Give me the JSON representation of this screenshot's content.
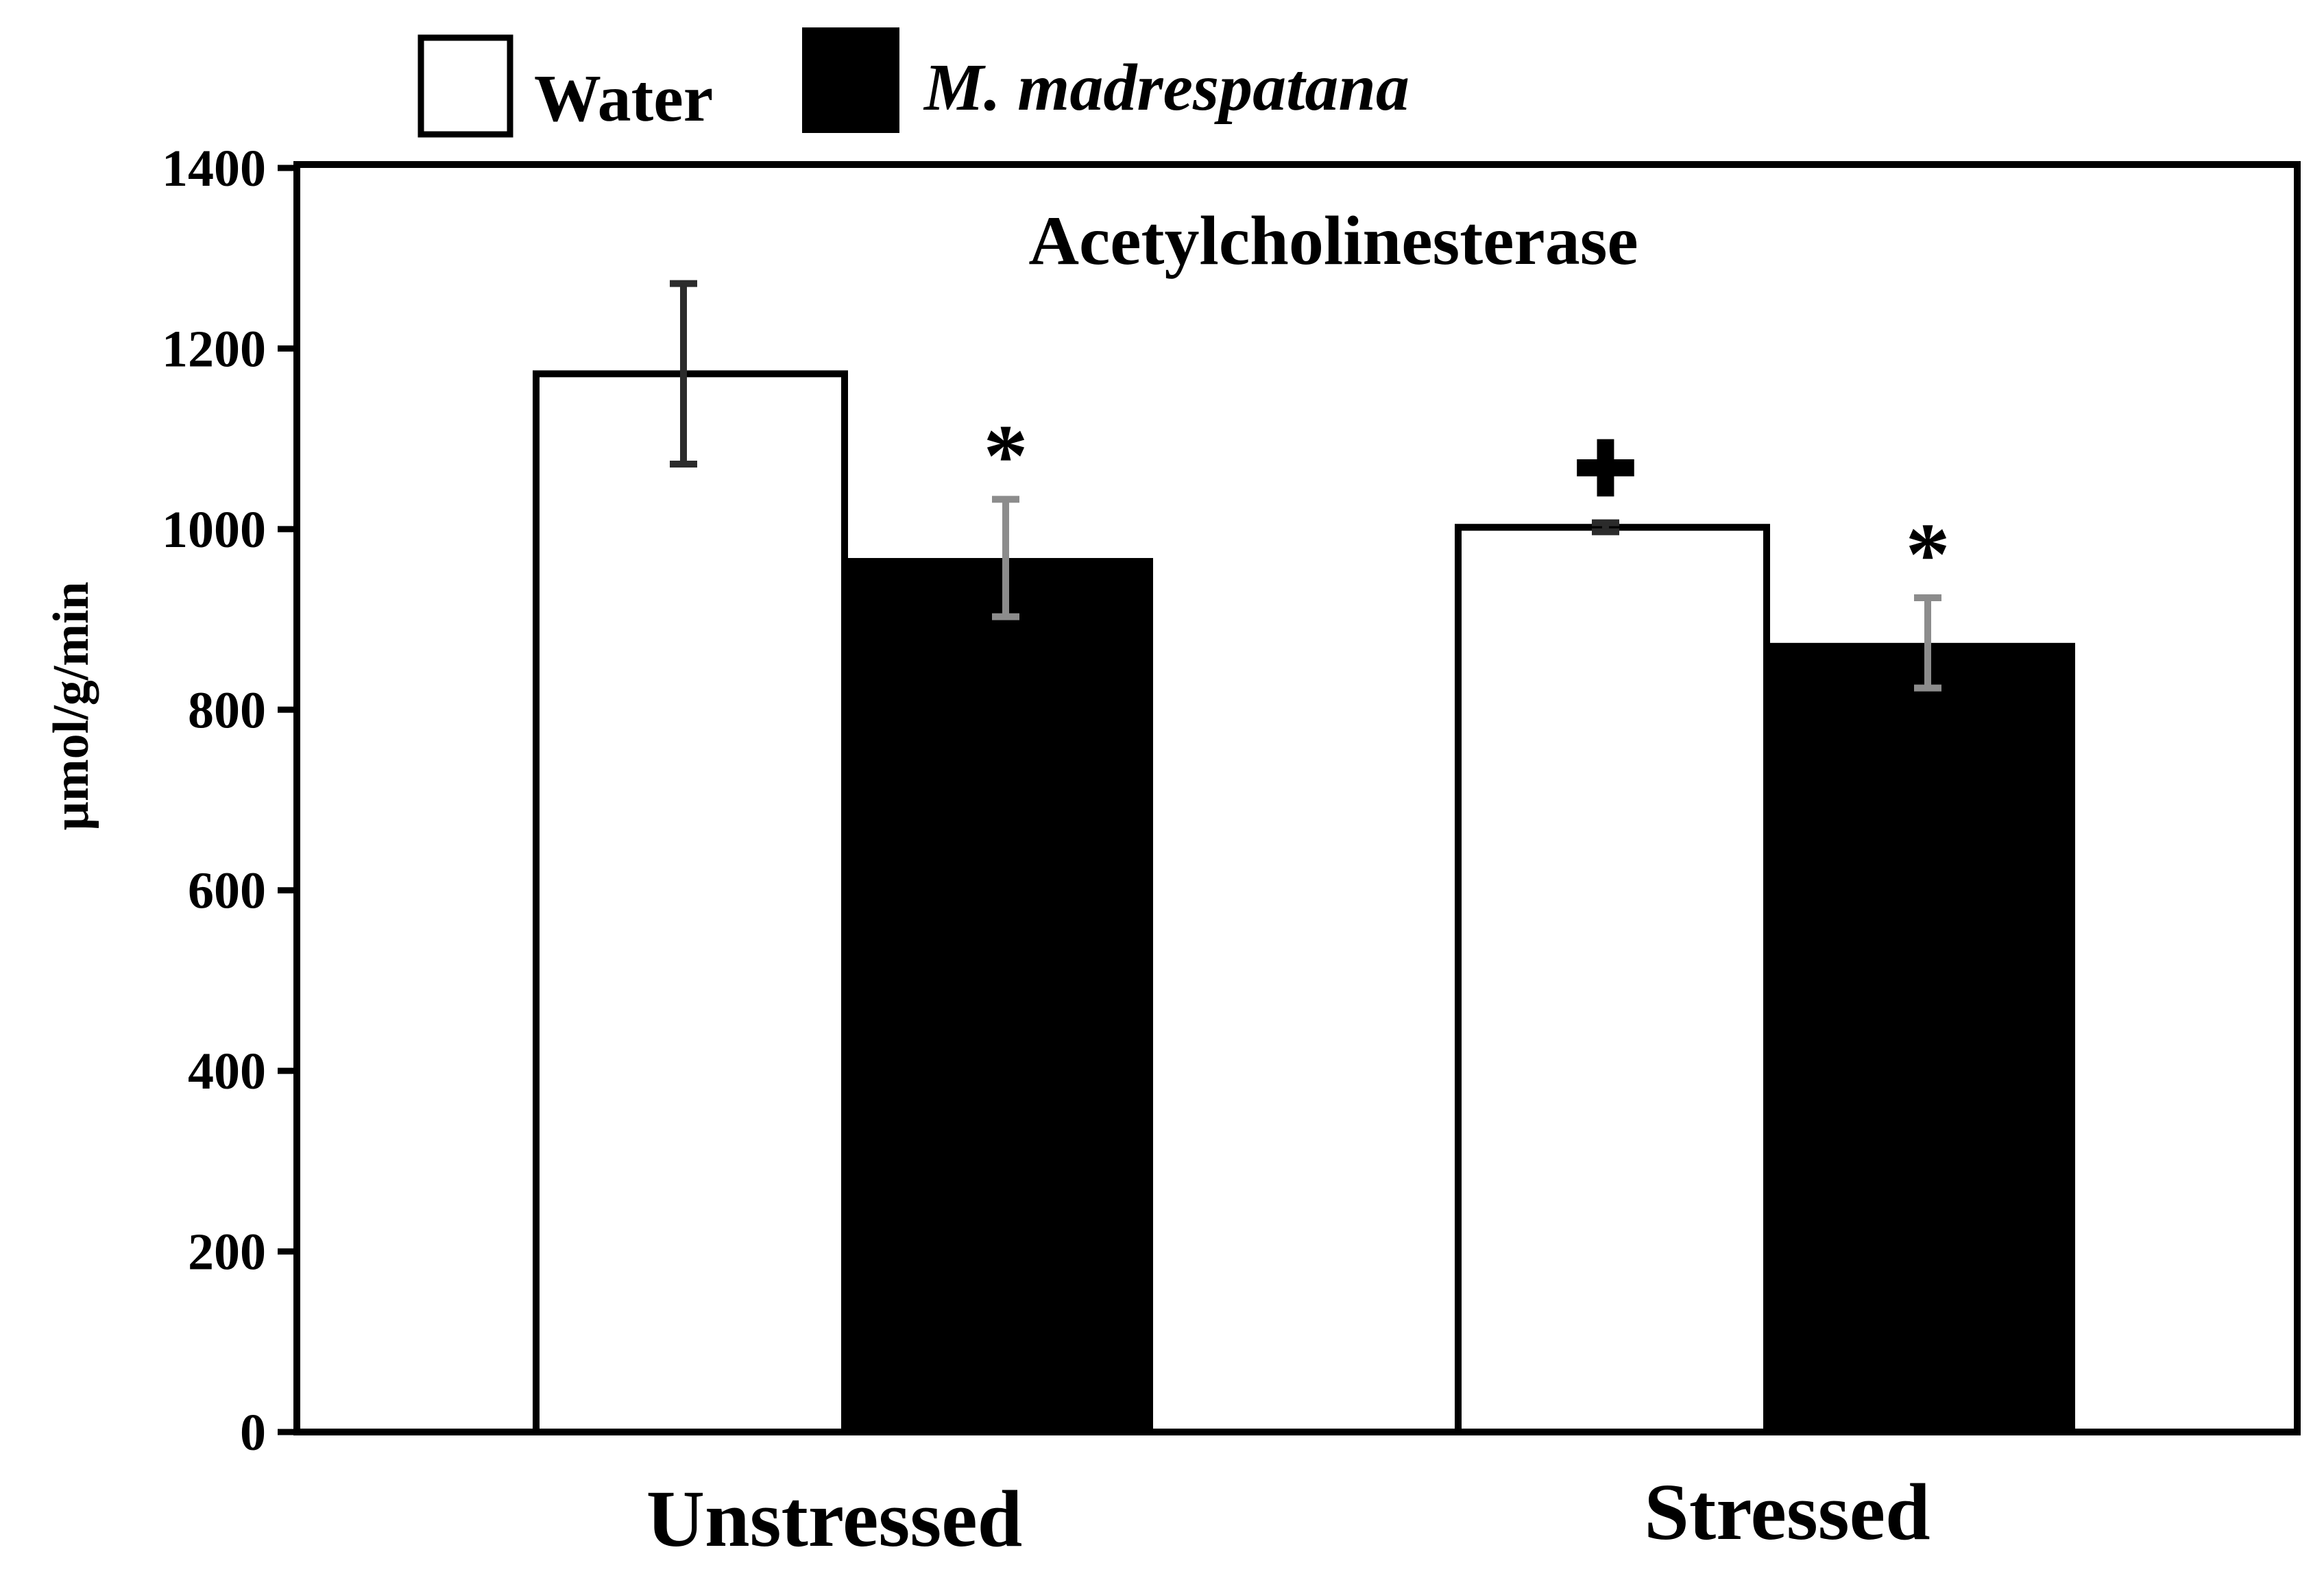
{
  "chart_data": {
    "type": "bar",
    "title": "Acetylcholinesterase",
    "xlabel": "",
    "ylabel": "µmol/g/min",
    "ylim": [
      0,
      1400
    ],
    "yticks": [
      0,
      200,
      400,
      600,
      800,
      1000,
      1200,
      1400
    ],
    "grid": false,
    "legend_position": "top-left, above plot",
    "categories": [
      "Unstressed",
      "Stressed"
    ],
    "series": [
      {
        "name": "Water",
        "color": "#ffffff",
        "values": [
          1172,
          1002
        ],
        "errors": [
          100,
          5
        ],
        "error_color": "#2b2b2b",
        "markers": [
          "",
          "✚"
        ]
      },
      {
        "name": "M. madrespatana",
        "color": "#000000",
        "values": [
          968,
          874
        ],
        "errors": [
          65,
          50
        ],
        "error_color": "#8c8c8c",
        "markers": [
          "*",
          "*"
        ]
      }
    ]
  }
}
